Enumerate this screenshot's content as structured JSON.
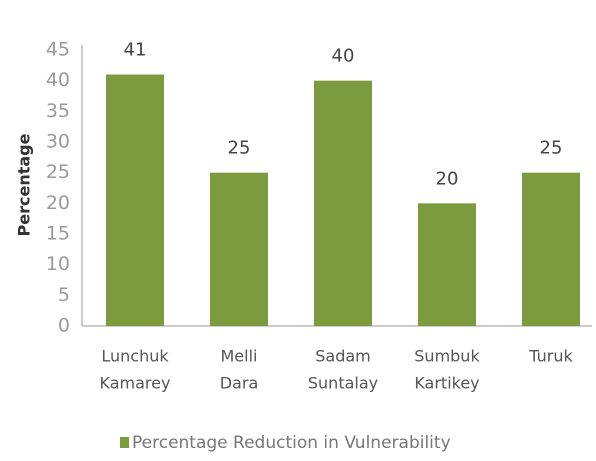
{
  "chart_data": {
    "type": "bar",
    "categories": [
      [
        "Lunchuk",
        "Kamarey"
      ],
      [
        "Melli",
        "Dara"
      ],
      [
        "Sadam",
        "Suntalay"
      ],
      [
        "Sumbuk",
        "Kartikey"
      ],
      [
        "Turuk"
      ]
    ],
    "series": [
      {
        "name": "Percentage Reduction  in Vulnerability",
        "color": "#7b9b3e",
        "values": [
          41,
          25,
          40,
          20,
          25
        ]
      }
    ],
    "ylabel": "Percentage",
    "ylim": [
      0,
      45
    ],
    "yticks": [
      0,
      5,
      10,
      15,
      20,
      25,
      30,
      35,
      40,
      45
    ],
    "grid": false,
    "legend": "bottom"
  }
}
